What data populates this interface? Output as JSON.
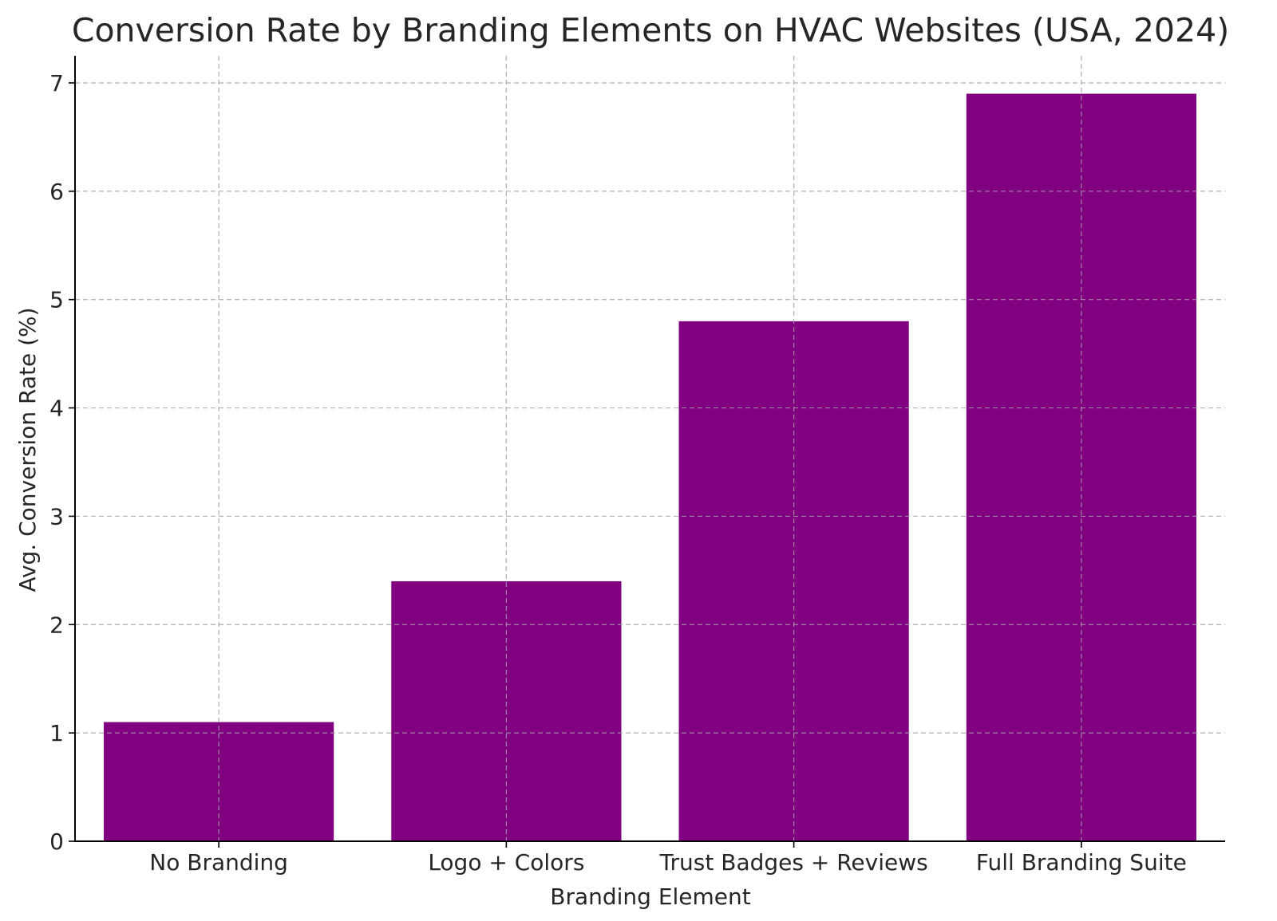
{
  "chart_data": {
    "type": "bar",
    "title": "Conversion Rate by Branding Elements on HVAC Websites (USA, 2024)",
    "xlabel": "Branding Element",
    "ylabel": "Avg. Conversion Rate (%)",
    "categories": [
      "No Branding",
      "Logo + Colors",
      "Trust Badges + Reviews",
      "Full Branding Suite"
    ],
    "values": [
      1.1,
      2.4,
      4.8,
      6.9
    ],
    "ylim": [
      0,
      7.25
    ],
    "yticks": [
      0,
      1,
      2,
      3,
      4,
      5,
      6,
      7
    ],
    "grid": true,
    "bar_color": "#800080"
  }
}
